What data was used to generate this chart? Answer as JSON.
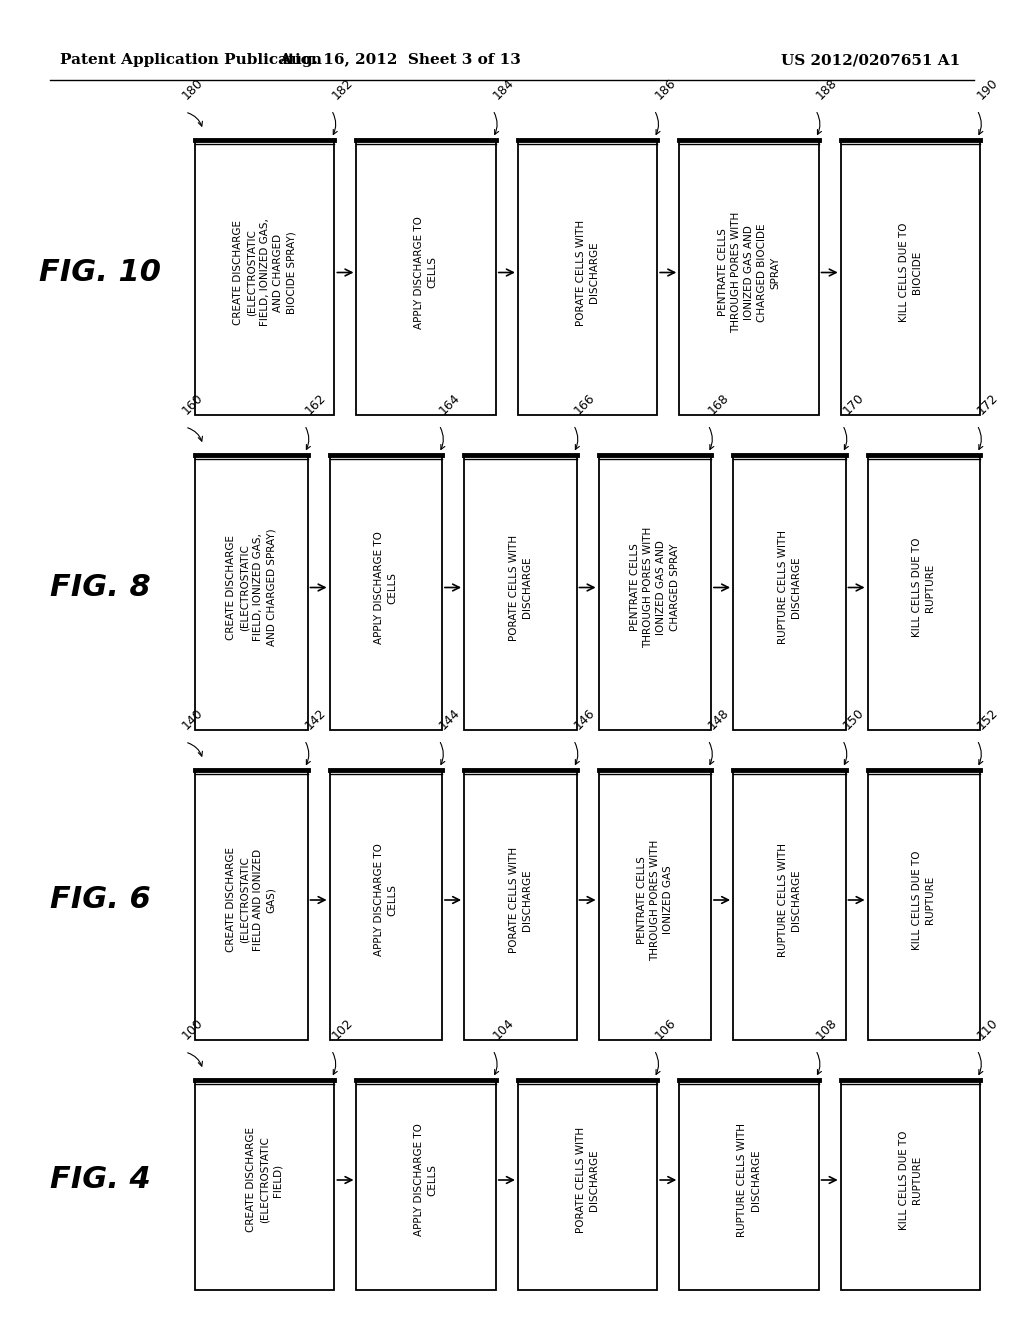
{
  "header_left": "Patent Application Publication",
  "header_center": "Aug. 16, 2012  Sheet 3 of 13",
  "header_right": "US 2012/0207651 A1",
  "bg_color": "#ffffff",
  "figures": [
    {
      "label": "FIG. 4",
      "flow_num": "100",
      "boxes": [
        {
          "num": "102",
          "text": "CREATE DISCHARGE\n(ELECTROSTATIC\nFIELD)"
        },
        {
          "num": "104",
          "text": "APPLY DISCHARGE TO\nCELLS"
        },
        {
          "num": "106",
          "text": "PORATE CELLS WITH\nDISCHARGE"
        },
        {
          "num": "108",
          "text": "RUPTURE CELLS WITH\nDISCHARGE"
        },
        {
          "num": "110",
          "text": "KILL CELLS DUE TO\nRUPTURE"
        }
      ]
    },
    {
      "label": "FIG. 6",
      "flow_num": "140",
      "boxes": [
        {
          "num": "142",
          "text": "CREATE DISCHARGE\n(ELECTROSTATIC\nFIELD AND IONIZED\nGAS)"
        },
        {
          "num": "144",
          "text": "APPLY DISCHARGE TO\nCELLS"
        },
        {
          "num": "146",
          "text": "PORATE CELLS WITH\nDISCHARGE"
        },
        {
          "num": "148",
          "text": "PENTRATE CELLS\nTHROUGH PORES WITH\nIONIZED GAS"
        },
        {
          "num": "150",
          "text": "RUPTURE CELLS WITH\nDISCHARGE"
        },
        {
          "num": "152",
          "text": "KILL CELLS DUE TO\nRUPTURE"
        }
      ]
    },
    {
      "label": "FIG. 8",
      "flow_num": "160",
      "boxes": [
        {
          "num": "162",
          "text": "CREATE DISCHARGE\n(ELECTROSTATIC\nFIELD, IONIZED GAS,\nAND CHARGED SPRAY)"
        },
        {
          "num": "164",
          "text": "APPLY DISCHARGE TO\nCELLS"
        },
        {
          "num": "166",
          "text": "PORATE CELLS WITH\nDISCHARGE"
        },
        {
          "num": "168",
          "text": "PENTRATE CELLS\nTHROUGH PORES WITH\nIONIZED GAS AND\nCHARGED SPRAY"
        },
        {
          "num": "170",
          "text": "RUPTURE CELLS WITH\nDISCHARGE"
        },
        {
          "num": "172",
          "text": "KILL CELLS DUE TO\nRUPTURE"
        }
      ]
    },
    {
      "label": "FIG. 10",
      "flow_num": "180",
      "boxes": [
        {
          "num": "182",
          "text": "CREATE DISCHARGE\n(ELECTROSTATIC\nFIELD, IONIZED GAS,\nAND CHARGED\nBIOCIDE SPRAY)"
        },
        {
          "num": "184",
          "text": "APPLY DISCHARGE TO\nCELLS"
        },
        {
          "num": "186",
          "text": "PORATE CELLS WITH\nDISCHARGE"
        },
        {
          "num": "188",
          "text": "PENTRATE CELLS\nTHROUGH PORES WITH\nIONIZED GAS AND\nCHARGED BIOCIDE\nSPRAY"
        },
        {
          "num": "190",
          "text": "KILL CELLS DUE TO\nBIOCIDE"
        }
      ]
    }
  ]
}
